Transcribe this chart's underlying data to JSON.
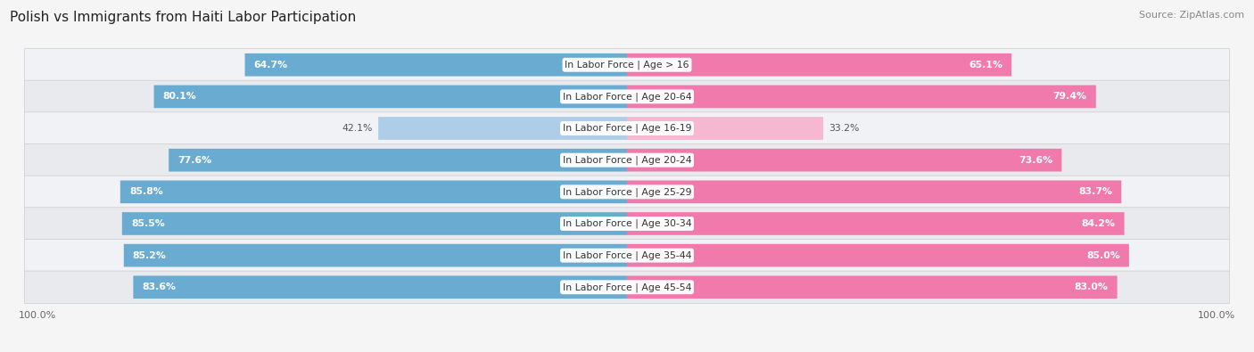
{
  "title": "Polish vs Immigrants from Haiti Labor Participation",
  "source": "Source: ZipAtlas.com",
  "categories": [
    "In Labor Force | Age > 16",
    "In Labor Force | Age 20-64",
    "In Labor Force | Age 16-19",
    "In Labor Force | Age 20-24",
    "In Labor Force | Age 25-29",
    "In Labor Force | Age 30-34",
    "In Labor Force | Age 35-44",
    "In Labor Force | Age 45-54"
  ],
  "polish_values": [
    64.7,
    80.1,
    42.1,
    77.6,
    85.8,
    85.5,
    85.2,
    83.6
  ],
  "haiti_values": [
    65.1,
    79.4,
    33.2,
    73.6,
    83.7,
    84.2,
    85.0,
    83.0
  ],
  "polish_color": "#6aabd2",
  "polish_color_light": "#aecde8",
  "haiti_color": "#f07aab",
  "haiti_color_light": "#f5b8d0",
  "row_bg_even": "#f0f2f5",
  "row_bg_odd": "#e8eaed",
  "max_value": 100.0,
  "title_fontsize": 11,
  "label_fontsize": 7.8,
  "value_fontsize": 7.8,
  "legend_fontsize": 8.5,
  "axis_label_fontsize": 8,
  "bar_height": 0.68,
  "background_color": "#f5f5f5"
}
